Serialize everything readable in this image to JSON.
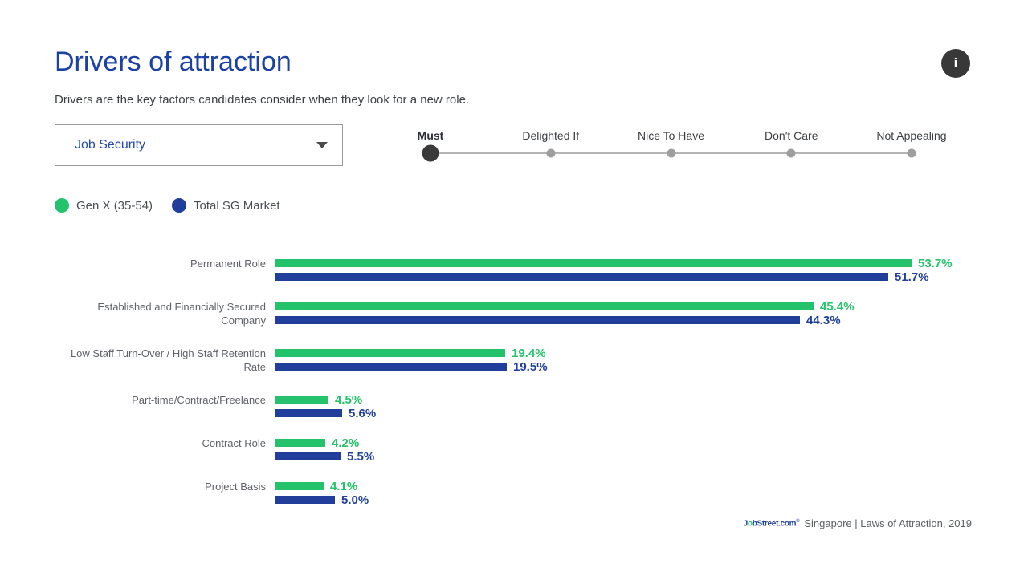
{
  "header": {
    "title": "Drivers of attraction",
    "subtitle": "Drivers are the key factors candidates consider when they look for a new role.",
    "info_glyph": "i"
  },
  "controls": {
    "driver_dropdown": {
      "value": "Job Security"
    },
    "slider": {
      "options": [
        "Must",
        "Delighted If",
        "Nice To Have",
        "Don't Care",
        "Not Appealing"
      ],
      "selected": "Must",
      "selected_index": 0
    }
  },
  "legend": [
    {
      "label": "Gen X (35-54)",
      "color": "#24c36b"
    },
    {
      "label": "Total SG Market",
      "color": "#213e9b"
    }
  ],
  "chart_data": {
    "type": "bar",
    "orientation": "horizontal",
    "categories": [
      "Permanent Role",
      "Established and Financially Secured Company",
      "Low Staff Turn-Over / High Staff Retention Rate",
      "Part-time/Contract/Freelance",
      "Contract Role",
      "Project Basis"
    ],
    "series": [
      {
        "name": "Gen X (35-54)",
        "color": "#24c36b",
        "values": [
          53.7,
          45.4,
          19.4,
          4.5,
          4.2,
          4.1
        ]
      },
      {
        "name": "Total SG Market",
        "color": "#213e9b",
        "values": [
          51.7,
          44.3,
          19.5,
          5.6,
          5.5,
          5.0
        ]
      }
    ],
    "value_suffix": "%",
    "xlim": [
      0,
      56
    ],
    "grid": false,
    "legend_position": "top-left"
  },
  "footer": {
    "logo_prefix": "J",
    "logo_o": "o",
    "logo_suffix": "bStreet.com",
    "logo_reg": "®",
    "source": "Singapore | Laws of Attraction, 2019"
  }
}
